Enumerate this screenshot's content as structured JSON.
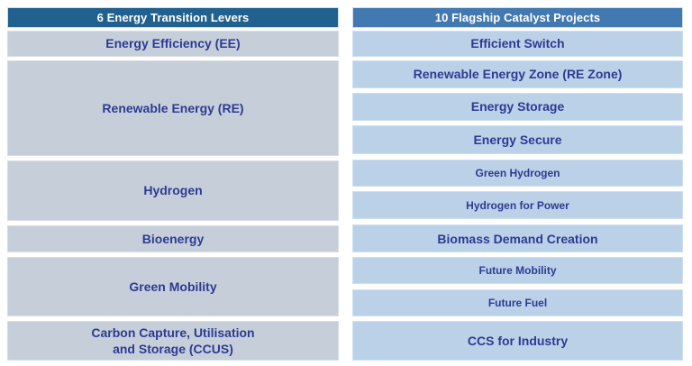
{
  "left_column": {
    "header": "6 Energy Transition Levers",
    "rows": [
      {
        "label": "Energy Efficiency (EE)"
      },
      {
        "label": "Renewable Energy (RE)"
      },
      {
        "label": "Hydrogen"
      },
      {
        "label": "Bioenergy"
      },
      {
        "label": "Green Mobility"
      },
      {
        "label": "Carbon Capture, Utilisation\nand Storage (CCUS)"
      }
    ]
  },
  "right_column": {
    "header": "10 Flagship Catalyst Projects",
    "rows": [
      {
        "label": "Efficient Switch"
      },
      {
        "label": "Renewable Energy Zone (RE Zone)"
      },
      {
        "label": "Energy Storage"
      },
      {
        "label": "Energy Secure"
      },
      {
        "label": "Green Hydrogen"
      },
      {
        "label": "Hydrogen for Power"
      },
      {
        "label": "Biomass Demand Creation"
      },
      {
        "label": "Future Mobility"
      },
      {
        "label": "Future Fuel"
      },
      {
        "label": "CCS for Industry"
      }
    ]
  },
  "colors": {
    "left_header_bg": "#20618F",
    "right_header_bg": "#4279B1",
    "left_row_bg": "#C6CFD9",
    "right_row_bg": "#BAD1E8",
    "row_text": "#2E3A93",
    "header_text": "#FFFFFF"
  }
}
